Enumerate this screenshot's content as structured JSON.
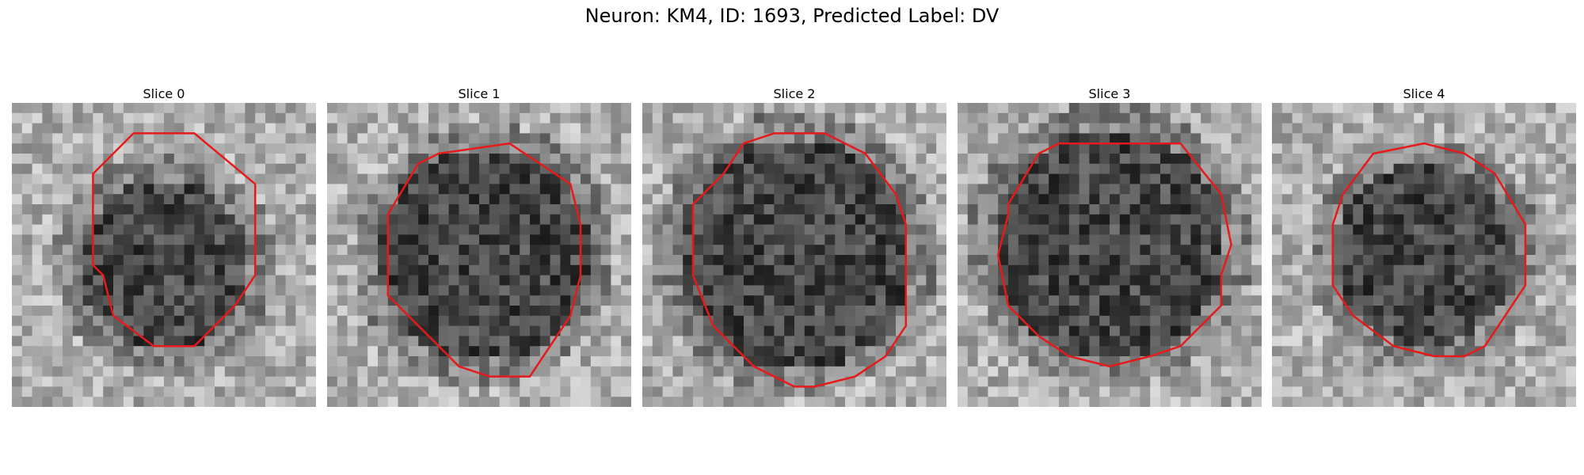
{
  "figure": {
    "title": "Neuron: KM4, ID: 1693, Predicted Label: DV"
  },
  "panels": [
    {
      "title": "Slice 0"
    },
    {
      "title": "Slice 1"
    },
    {
      "title": "Slice 2"
    },
    {
      "title": "Slice 3"
    },
    {
      "title": "Slice 4"
    }
  ],
  "colors": {
    "contour": "#e8191a",
    "colormap": "grayscale"
  }
}
